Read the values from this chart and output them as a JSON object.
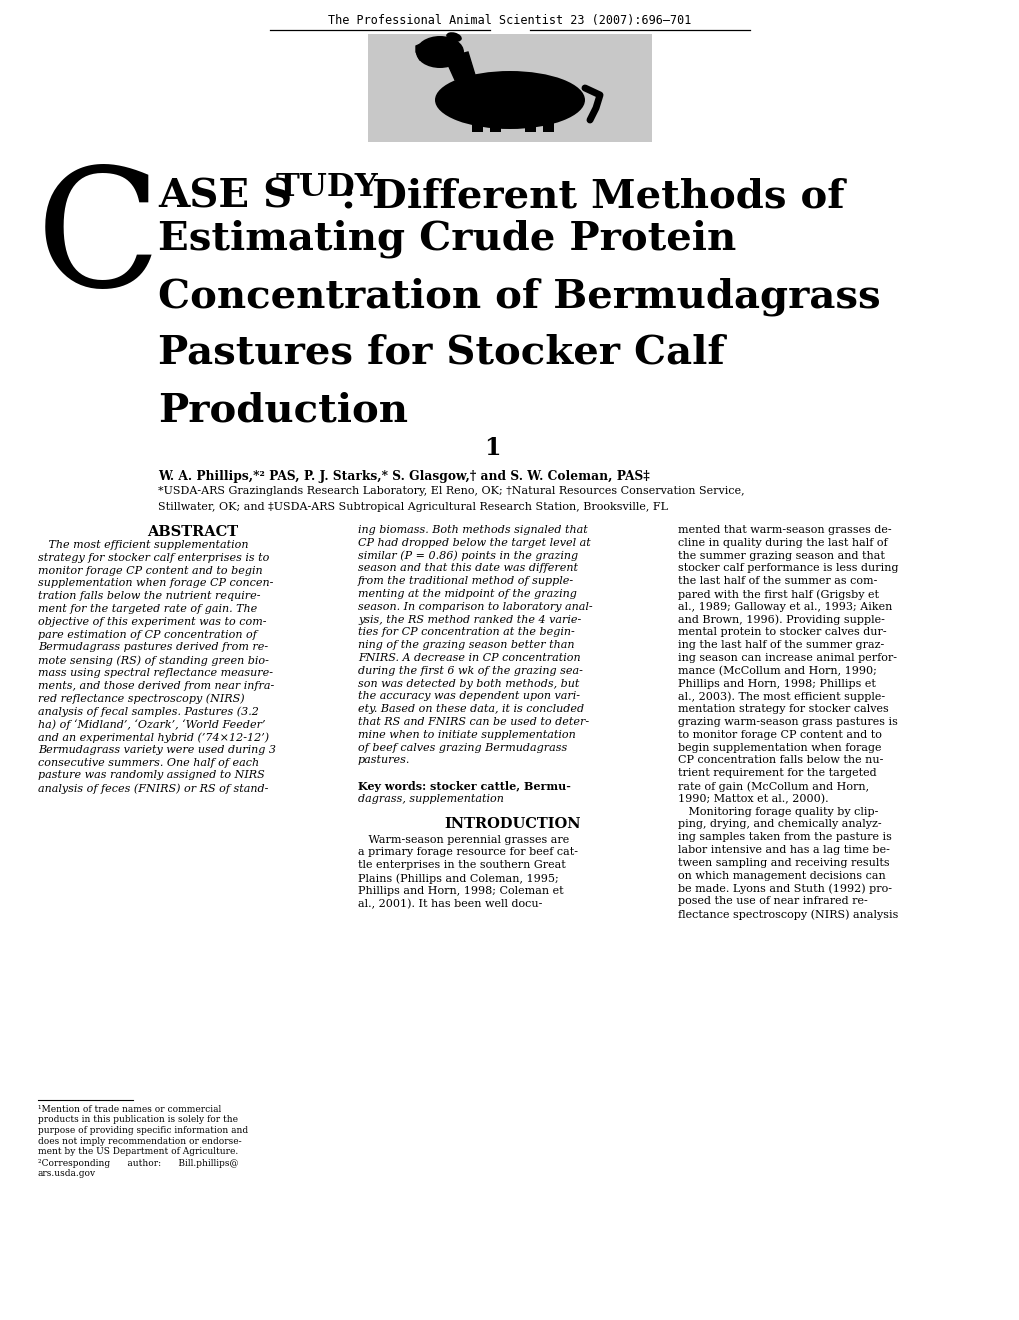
{
  "journal_header": "The Professional Animal Scientist 23 (2007):696–701",
  "authors_line1": "W. A. Phillips,*² PAS, P. J. Starks,* S. Glasgow,† and S. W. Coleman, PAS‡",
  "authors_line2": "*USDA-ARS Grazinglands Research Laboratory, El Reno, OK; †Natural Resources Conservation Service,",
  "authors_line3": "Stillwater, OK; and ‡USDA-ARS Subtropical Agricultural Research Station, Brooksville, FL",
  "abstract_title": "ABSTRACT",
  "abstract_col1_lines": [
    "   The most efficient supplementation",
    "strategy for stocker calf enterprises is to",
    "monitor forage CP content and to begin",
    "supplementation when forage CP concen-",
    "tration falls below the nutrient require-",
    "ment for the targeted rate of gain. The",
    "objective of this experiment was to com-",
    "pare estimation of CP concentration of",
    "Bermudagrass pastures derived from re-",
    "mote sensing (RS) of standing green bio-",
    "mass using spectral reflectance measure-",
    "ments, and those derived from near infra-",
    "red reflectance spectroscopy (NIRS)",
    "analysis of fecal samples. Pastures (3.2",
    "ha) of ‘Midland’, ‘Ozark’, ‘World Feeder’",
    "and an experimental hybrid (’74×12-12’)",
    "Bermudagrass variety were used during 3",
    "consecutive summers. One half of each",
    "pasture was randomly assigned to NIRS",
    "analysis of feces (FNIRS) or RS of stand-"
  ],
  "abstract_col2_lines": [
    "ing biomass. Both methods signaled that",
    "CP had dropped below the target level at",
    "similar (P = 0.86) points in the grazing",
    "season and that this date was different",
    "from the traditional method of supple-",
    "menting at the midpoint of the grazing",
    "season. In comparison to laboratory anal-",
    "ysis, the RS method ranked the 4 varie-",
    "ties for CP concentration at the begin-",
    "ning of the grazing season better than",
    "FNIRS. A decrease in CP concentration",
    "during the first 6 wk of the grazing sea-",
    "son was detected by both methods, but",
    "the accuracy was dependent upon vari-",
    "ety. Based on these data, it is concluded",
    "that RS and FNIRS can be used to deter-",
    "mine when to initiate supplementation",
    "of beef calves grazing Bermudagrass",
    "pastures.",
    "",
    "Key words: stocker cattle, Bermu-",
    "dagrass, supplementation"
  ],
  "introduction_title": "INTRODUCTION",
  "introduction_lines": [
    "   Warm-season perennial grasses are",
    "a primary forage resource for beef cat-",
    "tle enterprises in the southern Great",
    "Plains (Phillips and Coleman, 1995;",
    "Phillips and Horn, 1998; Coleman et",
    "al., 2001). It has been well docu-"
  ],
  "right_col_lines": [
    "mented that warm-season grasses de-",
    "cline in quality during the last half of",
    "the summer grazing season and that",
    "stocker calf performance is less during",
    "the last half of the summer as com-",
    "pared with the first half (Grigsby et",
    "al., 1989; Galloway et al., 1993; Aiken",
    "and Brown, 1996). Providing supple-",
    "mental protein to stocker calves dur-",
    "ing the last half of the summer graz-",
    "ing season can increase animal perfor-",
    "mance (McCollum and Horn, 1990;",
    "Phillips and Horn, 1998; Phillips et",
    "al., 2003). The most efficient supple-",
    "mentation strategy for stocker calves",
    "grazing warm-season grass pastures is",
    "to monitor forage CP content and to",
    "begin supplementation when forage",
    "CP concentration falls below the nu-",
    "trient requirement for the targeted",
    "rate of gain (McCollum and Horn,",
    "1990; Mattox et al., 2000).",
    "   Monitoring forage quality by clip-",
    "ping, drying, and chemically analyz-",
    "ing samples taken from the pasture is",
    "labor intensive and has a lag time be-",
    "tween sampling and receiving results",
    "on which management decisions can",
    "be made. Lyons and Stuth (1992) pro-",
    "posed the use of near infrared re-",
    "flectance spectroscopy (NIRS) analysis"
  ],
  "footnote1_lines": [
    "¹Mention of trade names or commercial",
    "products in this publication is solely for the",
    "purpose of providing specific information and",
    "does not imply recommendation or endorse-",
    "ment by the US Department of Agriculture."
  ],
  "footnote2a": "²Corresponding      author:      Bill.phillips@",
  "footnote2b": "ars.usda.gov",
  "bg_color": "#ffffff"
}
